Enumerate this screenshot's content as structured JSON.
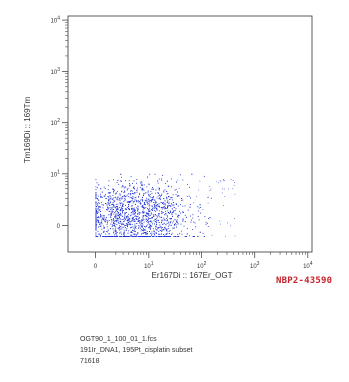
{
  "chart_data": {
    "type": "scatter",
    "xlabel": "Er167Di :: 167Er_OGT",
    "ylabel": "Tm169Di :: 169Tm",
    "x_scale": "arcsinh",
    "y_scale": "arcsinh",
    "x_ticks": [
      {
        "label": "0",
        "value": 0
      },
      {
        "label": "10^1",
        "value": 10
      },
      {
        "label": "10^2",
        "value": 100
      },
      {
        "label": "10^3",
        "value": 1000
      },
      {
        "label": "10^4",
        "value": 10000
      }
    ],
    "y_ticks": [
      {
        "label": "0",
        "value": 0
      },
      {
        "label": "10^1",
        "value": 10
      },
      {
        "label": "10^2",
        "value": 100
      },
      {
        "label": "10^3",
        "value": 1000
      },
      {
        "label": "10^4",
        "value": 10000
      }
    ],
    "xlim": [
      -3,
      12000
    ],
    "ylim": [
      -3,
      12000
    ],
    "color": "#1a2fd6",
    "population": {
      "x_range": [
        0,
        150
      ],
      "y_range": [
        -1,
        10
      ],
      "center": [
        5,
        1
      ],
      "event_count": 71618
    }
  },
  "watermark": "NBP2-43590",
  "meta": {
    "filename": "OGT90_1_100_01_1.fcs",
    "gate": "191Ir_DNA1, 195Pt_cisplatin subset",
    "count": "71618"
  }
}
